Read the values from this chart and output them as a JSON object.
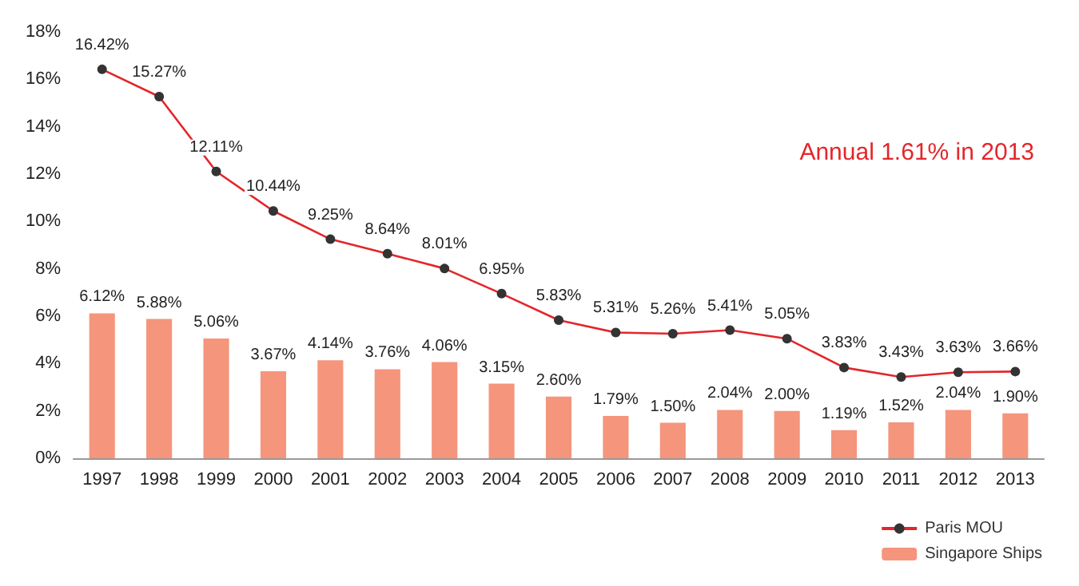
{
  "chart_data": {
    "type": "bar",
    "categories": [
      "1997",
      "1998",
      "1999",
      "2000",
      "2001",
      "2002",
      "2003",
      "2004",
      "2005",
      "2006",
      "2007",
      "2008",
      "2009",
      "2010",
      "2011",
      "2012",
      "2013"
    ],
    "series": [
      {
        "name": "Paris MOU",
        "type": "line",
        "color": "#e3262b",
        "values": [
          16.42,
          15.27,
          12.11,
          10.44,
          9.25,
          8.64,
          8.01,
          6.95,
          5.83,
          5.31,
          5.26,
          5.41,
          5.05,
          3.83,
          3.43,
          3.63,
          3.66
        ],
        "value_labels": [
          "16.42%",
          "15.27%",
          "12.11%",
          "10.44%",
          "9.25%",
          "8.64%",
          "8.01%",
          "6.95%",
          "5.83%",
          "5.31%",
          "5.26%",
          "5.41%",
          "5.05%",
          "3.83%",
          "3.43%",
          "3.63%",
          "3.66%"
        ]
      },
      {
        "name": "Singapore Ships",
        "color": "#f5957c",
        "values": [
          6.12,
          5.88,
          5.06,
          3.67,
          4.14,
          3.76,
          4.06,
          3.15,
          2.6,
          1.79,
          1.5,
          2.04,
          2.0,
          1.19,
          1.52,
          2.04,
          1.9
        ],
        "value_labels": [
          "6.12%",
          "5.88%",
          "5.06%",
          "3.67%",
          "4.14%",
          "3.76%",
          "4.06%",
          "3.15%",
          "2.60%",
          "1.79%",
          "1.50%",
          "2.04%",
          "2.00%",
          "1.19%",
          "1.52%",
          "2.04%",
          "1.90%"
        ]
      }
    ],
    "ylim": [
      0,
      18
    ],
    "yticks": [
      {
        "value": 0,
        "label": "0%"
      },
      {
        "value": 2,
        "label": "2%"
      },
      {
        "value": 4,
        "label": "4%"
      },
      {
        "value": 6,
        "label": "6%"
      },
      {
        "value": 8,
        "label": "8%"
      },
      {
        "value": 10,
        "label": "10%"
      },
      {
        "value": 12,
        "label": "12%"
      },
      {
        "value": 14,
        "label": "14%"
      },
      {
        "value": 16,
        "label": "16%"
      },
      {
        "value": 18,
        "label": "18%"
      }
    ],
    "annotations": [
      "Annual 1.61% in 2013"
    ],
    "grid": false,
    "legend": "bottom right",
    "marker": "circle"
  }
}
